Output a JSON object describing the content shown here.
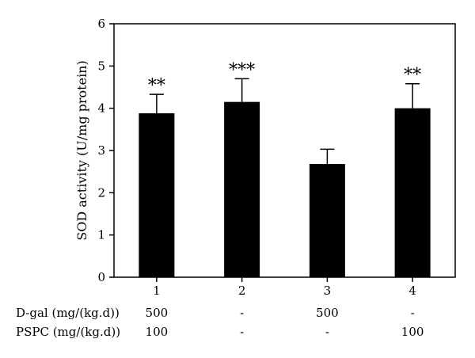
{
  "chart_data": {
    "type": "bar",
    "categories": [
      "1",
      "2",
      "3",
      "4"
    ],
    "values": [
      3.88,
      4.15,
      2.68,
      4.0
    ],
    "error": [
      0.45,
      0.55,
      0.35,
      0.58
    ],
    "significance": [
      "**",
      "***",
      "",
      "**"
    ],
    "ylabel": "SOD activity (U/mg protein)",
    "ylim": [
      0,
      6
    ],
    "yticks": [
      "0",
      "1",
      "2",
      "3",
      "4",
      "5",
      "6"
    ],
    "grid": false,
    "bar_color": "#000000"
  },
  "treatment_rows": [
    {
      "label": "D-gal (mg/(kg.d))",
      "values": [
        "500",
        "-",
        "500",
        "-"
      ]
    },
    {
      "label": "PSPC (mg/(kg.d))",
      "values": [
        "100",
        "-",
        "-",
        "100"
      ]
    }
  ]
}
